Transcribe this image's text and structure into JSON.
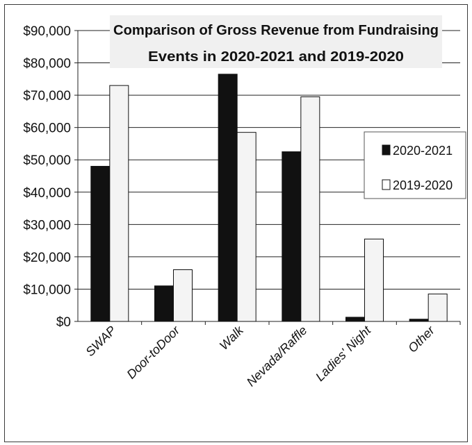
{
  "chart_data": {
    "type": "bar",
    "title_lines": [
      "Comparison of Gross Revenue from Fundraising",
      "Events in 2020-2021 and 2019-2020"
    ],
    "xlabel": "",
    "ylabel": "",
    "categories": [
      "SWAP",
      "Door-toDoor",
      "Walk",
      "Nevada/Raffle",
      "Ladies' Night",
      "Other"
    ],
    "series": [
      {
        "name": "2020-2021",
        "color": "#111111",
        "values": [
          48000,
          11000,
          76500,
          52500,
          1300,
          700
        ]
      },
      {
        "name": "2019-2020",
        "color": "#f4f4f4",
        "values": [
          73000,
          16000,
          58500,
          69500,
          25500,
          8500
        ]
      }
    ],
    "ylim": [
      0,
      90000
    ],
    "yticks": [
      0,
      10000,
      20000,
      30000,
      40000,
      50000,
      60000,
      70000,
      80000,
      90000
    ],
    "ytick_labels": [
      "$0",
      "$10,000",
      "$20,000",
      "$30,000",
      "$40,000",
      "$50,000",
      "$60,000",
      "$70,000",
      "$80,000",
      "$90,000"
    ],
    "grid": true,
    "legend_position": "right"
  }
}
